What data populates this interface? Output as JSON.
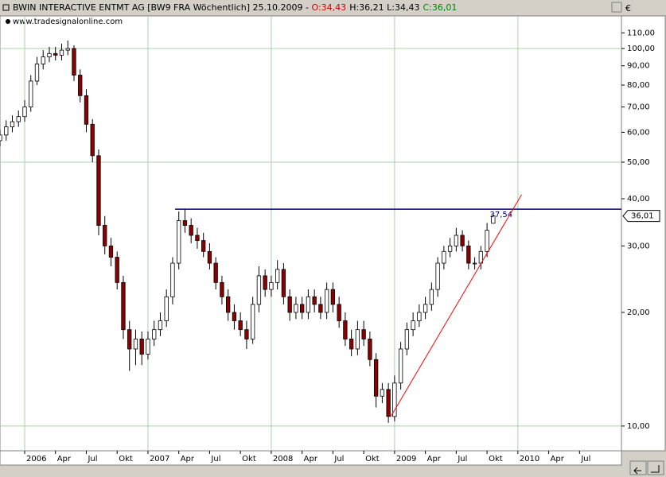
{
  "chart_data": {
    "type": "candlestick",
    "header": {
      "title": "BWIN INTERACTIVE ENTMT AG [BW9 FRA  Wöchentlich] 25.10.2009 - ",
      "open_label": "O:34,43",
      "hl_label": "H:36,21 L:34,43",
      "close_label": "C:36,01",
      "source": "www.tradesignalonline.com",
      "currency": "€"
    },
    "log_scale": true,
    "xlim": [
      2005.8,
      2010.84
    ],
    "ylim": [
      8.6,
      122
    ],
    "xticks": [
      {
        "value": 2006,
        "label": "2006"
      },
      {
        "value": 2006.25,
        "label": "Apr"
      },
      {
        "value": 2006.5,
        "label": "Jul"
      },
      {
        "value": 2006.75,
        "label": "Okt"
      },
      {
        "value": 2007,
        "label": "2007"
      },
      {
        "value": 2007.25,
        "label": "Apr"
      },
      {
        "value": 2007.5,
        "label": "Jul"
      },
      {
        "value": 2007.75,
        "label": "Okt"
      },
      {
        "value": 2008,
        "label": "2008"
      },
      {
        "value": 2008.25,
        "label": "Apr"
      },
      {
        "value": 2008.5,
        "label": "Jul"
      },
      {
        "value": 2008.75,
        "label": "Okt"
      },
      {
        "value": 2009,
        "label": "2009"
      },
      {
        "value": 2009.25,
        "label": "Apr"
      },
      {
        "value": 2009.5,
        "label": "Jul"
      },
      {
        "value": 2009.75,
        "label": "Okt"
      },
      {
        "value": 2010,
        "label": "2010"
      },
      {
        "value": 2010.25,
        "label": "Apr"
      },
      {
        "value": 2010.5,
        "label": "Jul"
      }
    ],
    "yticks": [
      {
        "value": 10,
        "label": "10,00"
      },
      {
        "value": 20,
        "label": "20,00"
      },
      {
        "value": 30,
        "label": "30,00"
      },
      {
        "value": 40,
        "label": "40,00"
      },
      {
        "value": 50,
        "label": "50,00"
      },
      {
        "value": 60,
        "label": "60,00"
      },
      {
        "value": 70,
        "label": "70,00"
      },
      {
        "value": 80,
        "label": "80,00"
      },
      {
        "value": 90,
        "label": "90,00"
      },
      {
        "value": 100,
        "label": "100,00"
      },
      {
        "value": 110,
        "label": "110,00"
      }
    ],
    "ygrid": [
      10,
      50,
      100
    ],
    "up_color": "#ffffff",
    "down_color": "#8b0000",
    "wick_color": "#000000",
    "grid_color": "#a8d0a8",
    "x": [
      2005.8,
      2005.85,
      2005.9,
      2005.95,
      2006.0,
      2006.05,
      2006.1,
      2006.15,
      2006.2,
      2006.25,
      2006.3,
      2006.35,
      2006.4,
      2006.45,
      2006.5,
      2006.55,
      2006.6,
      2006.65,
      2006.7,
      2006.75,
      2006.8,
      2006.85,
      2006.9,
      2006.95,
      2007.0,
      2007.05,
      2007.1,
      2007.15,
      2007.2,
      2007.25,
      2007.3,
      2007.35,
      2007.4,
      2007.45,
      2007.5,
      2007.55,
      2007.6,
      2007.65,
      2007.7,
      2007.75,
      2007.8,
      2007.85,
      2007.9,
      2007.95,
      2008.0,
      2008.05,
      2008.1,
      2008.15,
      2008.2,
      2008.25,
      2008.3,
      2008.35,
      2008.4,
      2008.45,
      2008.5,
      2008.55,
      2008.6,
      2008.65,
      2008.7,
      2008.75,
      2008.8,
      2008.85,
      2008.9,
      2008.95,
      2009.0,
      2009.05,
      2009.1,
      2009.15,
      2009.2,
      2009.25,
      2009.3,
      2009.35,
      2009.4,
      2009.45,
      2009.5,
      2009.55,
      2009.6,
      2009.65,
      2009.7,
      2009.75,
      2009.8
    ],
    "open": [
      57,
      59,
      62,
      64,
      66,
      70,
      82,
      91,
      95,
      97,
      96,
      99,
      100,
      85,
      75,
      63,
      52,
      34,
      30,
      28,
      24,
      18,
      16,
      17,
      15.5,
      17,
      18,
      19,
      22,
      27,
      35,
      34,
      32,
      31,
      29,
      27,
      24,
      22,
      20,
      19,
      18,
      17,
      21,
      25,
      23,
      24,
      26,
      22,
      20,
      21,
      20,
      22,
      21,
      20,
      23,
      21,
      19,
      17,
      16,
      18,
      17,
      15,
      12,
      12.5,
      10.6,
      13,
      16,
      18,
      19,
      20,
      21,
      23,
      27,
      29,
      30,
      32,
      30,
      27,
      27,
      29,
      34.43
    ],
    "high": [
      61,
      64.5,
      66.5,
      68.5,
      73,
      85,
      95,
      99,
      101,
      101,
      103,
      105,
      102,
      88,
      78,
      65,
      54,
      36,
      31.5,
      29,
      25,
      19,
      18,
      17.8,
      17.8,
      19,
      20,
      23,
      28,
      37,
      37.5,
      35.5,
      33.5,
      32.5,
      30.5,
      28,
      25,
      23,
      21,
      20,
      19,
      22,
      26.5,
      26,
      25,
      27.5,
      27,
      23,
      22,
      22,
      23,
      23,
      22,
      24,
      24,
      22,
      20,
      18,
      19,
      19,
      17.8,
      15.6,
      13,
      13,
      13.6,
      16.7,
      18.8,
      20,
      21,
      22,
      24,
      28,
      30,
      31.5,
      33.5,
      33,
      31,
      28,
      30,
      34.5,
      36.21
    ],
    "low": [
      55,
      57,
      60,
      62,
      64,
      68,
      80,
      88,
      92,
      93,
      93,
      96,
      82,
      72,
      60,
      50,
      32,
      28.5,
      26.5,
      23,
      17,
      14,
      14.5,
      14.5,
      15,
      16.3,
      17.3,
      18.3,
      21,
      26,
      32.5,
      30.5,
      29.5,
      28,
      26,
      23,
      21,
      19,
      18,
      17.3,
      16,
      16.5,
      20,
      22,
      22,
      23,
      21,
      19,
      19.2,
      19.2,
      19.2,
      20,
      19.2,
      19.2,
      20,
      18.2,
      16.3,
      15.3,
      15.4,
      16.3,
      14.4,
      11.2,
      11.5,
      10.2,
      10.3,
      12.5,
      15.4,
      17.3,
      18.3,
      19.2,
      20.2,
      22,
      26,
      28,
      29,
      29,
      26,
      26,
      26,
      28,
      34.43
    ],
    "close": [
      59,
      62,
      64,
      66,
      70,
      82,
      91,
      95,
      97,
      96,
      99,
      100,
      85,
      75,
      63,
      52,
      34,
      30,
      28,
      24,
      18,
      16,
      17,
      15.5,
      17,
      18,
      19,
      22,
      27,
      35,
      34,
      32,
      31,
      29,
      27,
      24,
      22,
      20,
      19,
      18,
      17,
      21,
      25,
      23,
      24,
      26,
      22,
      20,
      21,
      20,
      22,
      21,
      20,
      23,
      21,
      19,
      17,
      16,
      18,
      17,
      15,
      12,
      12.5,
      10.6,
      13,
      16,
      18,
      19,
      20,
      21,
      23,
      27,
      29,
      30,
      32,
      30,
      27,
      27,
      29,
      33,
      36.01
    ],
    "last_label": "36,01",
    "hline": {
      "value": 37.54,
      "label": "37,54",
      "x_start": 2007.22,
      "color": "#000080"
    },
    "trendline": {
      "x": [
        2008.97,
        2010.03
      ],
      "y": [
        10.6,
        41
      ],
      "color": "#ff0000"
    }
  }
}
